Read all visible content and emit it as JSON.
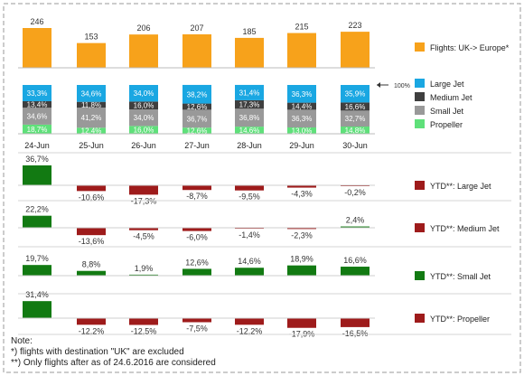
{
  "notes": {
    "heading": "Note:",
    "line1": "*) flights with destination \"UK\" are excluded",
    "line2": "**) Only flights after as of 24.6.2016 are considered"
  },
  "chart_data": [
    {
      "type": "bar",
      "categories": [
        "24-Jun",
        "25-Jun",
        "26-Jun",
        "27-Jun",
        "28-Jun",
        "29-Jun",
        "30-Jun"
      ],
      "series": [
        {
          "name": "Flights: UK-> Europe*",
          "values": [
            246,
            153,
            206,
            207,
            185,
            215,
            223
          ],
          "labels": [
            "246",
            "153",
            "206",
            "207",
            "185",
            "215",
            "223"
          ],
          "color": "#f7a21b"
        }
      ],
      "ylim": [
        0,
        260
      ]
    },
    {
      "type": "bar",
      "stacked": true,
      "categories": [
        "24-Jun",
        "25-Jun",
        "26-Jun",
        "27-Jun",
        "28-Jun",
        "29-Jun",
        "30-Jun"
      ],
      "total_label": "100%",
      "series": [
        {
          "name": "Propeller",
          "color": "#5fe07a",
          "values": [
            18.7,
            12.4,
            16.0,
            12.6,
            14.6,
            13.0,
            14.8
          ],
          "labels": [
            "18,7%",
            "12,4%",
            "16,0%",
            "12,6%",
            "14,6%",
            "13,0%",
            "14,8%"
          ]
        },
        {
          "name": "Small Jet",
          "color": "#999999",
          "values": [
            34.6,
            41.2,
            34.0,
            36.7,
            36.8,
            36.3,
            32.7
          ],
          "labels": [
            "34,6%",
            "41,2%",
            "34,0%",
            "36,7%",
            "36,8%",
            "36,3%",
            "32,7%"
          ]
        },
        {
          "name": "Medium Jet",
          "color": "#3f3f3f",
          "values": [
            13.4,
            11.8,
            16.0,
            12.6,
            17.3,
            14.4,
            16.6
          ],
          "labels": [
            "13,4%",
            "11,8%",
            "16,0%",
            "12,6%",
            "17,3%",
            "14,4%",
            "16,6%"
          ]
        },
        {
          "name": "Large Jet",
          "color": "#1aa7e2",
          "values": [
            33.3,
            34.6,
            34.0,
            38.2,
            31.4,
            36.3,
            35.9
          ],
          "labels": [
            "33,3%",
            "34,6%",
            "34,0%",
            "38,2%",
            "31,4%",
            "36,3%",
            "35,9%"
          ]
        }
      ],
      "ylim": [
        0,
        100
      ]
    },
    {
      "type": "bar",
      "categories": [
        "24-Jun",
        "25-Jun",
        "26-Jun",
        "27-Jun",
        "28-Jun",
        "29-Jun",
        "30-Jun"
      ],
      "series": [
        {
          "name": "YTD**: Large Jet",
          "legend_color": "#9e1b1b",
          "values": [
            36.7,
            -10.6,
            -17.3,
            -8.7,
            -9.5,
            -4.3,
            -0.2
          ],
          "labels": [
            "36,7%",
            "-10,6%",
            "-17,3%",
            "-8,7%",
            "-9,5%",
            "-4,3%",
            "-0,2%"
          ]
        }
      ],
      "colors": {
        "positive": "#127a12",
        "negative": "#9e1b1b"
      }
    },
    {
      "type": "bar",
      "categories": [
        "24-Jun",
        "25-Jun",
        "26-Jun",
        "27-Jun",
        "28-Jun",
        "29-Jun",
        "30-Jun"
      ],
      "series": [
        {
          "name": "YTD**: Medium Jet",
          "legend_color": "#9e1b1b",
          "values": [
            22.2,
            -13.6,
            -4.5,
            -6.0,
            -1.4,
            -2.3,
            2.4
          ],
          "labels": [
            "22,2%",
            "-13,6%",
            "-4,5%",
            "-6,0%",
            "-1,4%",
            "-2,3%",
            "2,4%"
          ]
        }
      ],
      "colors": {
        "positive": "#127a12",
        "negative": "#9e1b1b"
      }
    },
    {
      "type": "bar",
      "categories": [
        "24-Jun",
        "25-Jun",
        "26-Jun",
        "27-Jun",
        "28-Jun",
        "29-Jun",
        "30-Jun"
      ],
      "series": [
        {
          "name": "YTD**: Small Jet",
          "legend_color": "#127a12",
          "values": [
            19.7,
            8.8,
            1.9,
            12.6,
            14.6,
            18.9,
            16.6
          ],
          "labels": [
            "19,7%",
            "8,8%",
            "1,9%",
            "12,6%",
            "14,6%",
            "18,9%",
            "16,6%"
          ]
        }
      ],
      "colors": {
        "positive": "#127a12",
        "negative": "#9e1b1b"
      }
    },
    {
      "type": "bar",
      "categories": [
        "24-Jun",
        "25-Jun",
        "26-Jun",
        "27-Jun",
        "28-Jun",
        "29-Jun",
        "30-Jun"
      ],
      "series": [
        {
          "name": "YTD**: Propeller",
          "legend_color": "#9e1b1b",
          "values": [
            31.4,
            -12.2,
            -12.5,
            -7.5,
            -12.2,
            -17.9,
            -16.5
          ],
          "labels": [
            "31,4%",
            "-12,2%",
            "-12,5%",
            "-7,5%",
            "-12,2%",
            "-17,9%",
            "-16,5%"
          ]
        }
      ],
      "colors": {
        "positive": "#127a12",
        "negative": "#9e1b1b"
      }
    }
  ]
}
